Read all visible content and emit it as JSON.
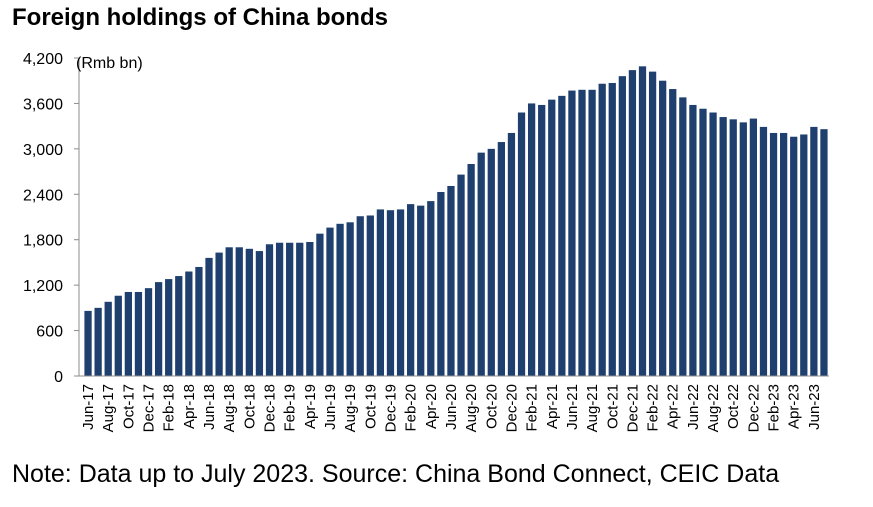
{
  "title": "Foreign holdings of China bonds",
  "note": "Note: Data up to July 2023. Source: China Bond Connect, CEIC Data",
  "chart_data": {
    "type": "bar",
    "unit_label": "(Rmb bn)",
    "bar_color": "#1f3f6e",
    "ylim": [
      0,
      4200
    ],
    "yticks": [
      "0",
      "600",
      "1,200",
      "1,800",
      "2,400",
      "3,000",
      "3,600",
      "4,200"
    ],
    "categories": [
      "Jun-17",
      "Jul-17",
      "Aug-17",
      "Sep-17",
      "Oct-17",
      "Nov-17",
      "Dec-17",
      "Jan-18",
      "Feb-18",
      "Mar-18",
      "Apr-18",
      "May-18",
      "Jun-18",
      "Jul-18",
      "Aug-18",
      "Sep-18",
      "Oct-18",
      "Nov-18",
      "Dec-18",
      "Jan-19",
      "Feb-19",
      "Mar-19",
      "Apr-19",
      "May-19",
      "Jun-19",
      "Jul-19",
      "Aug-19",
      "Sep-19",
      "Oct-19",
      "Nov-19",
      "Dec-19",
      "Jan-20",
      "Feb-20",
      "Mar-20",
      "Apr-20",
      "May-20",
      "Jun-20",
      "Jul-20",
      "Aug-20",
      "Sep-20",
      "Oct-20",
      "Nov-20",
      "Dec-20",
      "Jan-21",
      "Feb-21",
      "Mar-21",
      "Apr-21",
      "May-21",
      "Jun-21",
      "Jul-21",
      "Aug-21",
      "Sep-21",
      "Oct-21",
      "Nov-21",
      "Dec-21",
      "Jan-22",
      "Feb-22",
      "Mar-22",
      "Apr-22",
      "May-22",
      "Jun-22",
      "Jul-22",
      "Aug-22",
      "Sep-22",
      "Oct-22",
      "Nov-22",
      "Dec-22",
      "Jan-23",
      "Feb-23",
      "Mar-23",
      "Apr-23",
      "May-23",
      "Jun-23",
      "Jul-23"
    ],
    "xtick_labels": [
      "Jun-17",
      "Aug-17",
      "Oct-17",
      "Dec-17",
      "Feb-18",
      "Apr-18",
      "Jun-18",
      "Aug-18",
      "Oct-18",
      "Dec-18",
      "Feb-19",
      "Apr-19",
      "Jun-19",
      "Aug-19",
      "Oct-19",
      "Dec-19",
      "Feb-20",
      "Apr-20",
      "Jun-20",
      "Aug-20",
      "Oct-20",
      "Dec-20",
      "Feb-21",
      "Apr-21",
      "Jun-21",
      "Aug-21",
      "Oct-21",
      "Dec-21",
      "Feb-22",
      "Apr-22",
      "Jun-22",
      "Aug-22",
      "Oct-22",
      "Dec-22",
      "Feb-23",
      "Apr-23",
      "Jun-23"
    ],
    "values": [
      860,
      900,
      980,
      1060,
      1110,
      1110,
      1160,
      1240,
      1280,
      1320,
      1380,
      1440,
      1560,
      1630,
      1700,
      1700,
      1680,
      1650,
      1740,
      1760,
      1760,
      1760,
      1770,
      1880,
      1960,
      2010,
      2030,
      2110,
      2120,
      2200,
      2190,
      2200,
      2270,
      2250,
      2310,
      2430,
      2510,
      2660,
      2800,
      2950,
      3000,
      3090,
      3210,
      3480,
      3600,
      3580,
      3650,
      3700,
      3770,
      3780,
      3780,
      3860,
      3870,
      3960,
      4040,
      4090,
      4020,
      3900,
      3790,
      3680,
      3580,
      3530,
      3480,
      3420,
      3390,
      3350,
      3400,
      3290,
      3210,
      3210,
      3160,
      3190,
      3290,
      3260
    ]
  }
}
